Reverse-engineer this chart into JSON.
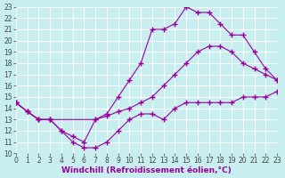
{
  "background_color": "#c8eef0",
  "grid_color": "#ffffff",
  "line_color": "#990099",
  "marker": "+",
  "markersize": 4,
  "linewidth": 0.8,
  "xlabel": "Windchill (Refroidissement éolien,°C)",
  "xlabel_fontsize": 6.5,
  "tick_fontsize": 5.5,
  "xlim": [
    0,
    23
  ],
  "ylim": [
    10,
    23
  ],
  "xticks": [
    0,
    1,
    2,
    3,
    4,
    5,
    6,
    7,
    8,
    9,
    10,
    11,
    12,
    13,
    14,
    15,
    16,
    17,
    18,
    19,
    20,
    21,
    22,
    23
  ],
  "yticks": [
    10,
    11,
    12,
    13,
    14,
    15,
    16,
    17,
    18,
    19,
    20,
    21,
    22,
    23
  ],
  "line1_x": [
    0,
    1,
    2,
    3,
    7,
    8,
    9,
    10,
    11,
    12,
    13,
    14,
    15,
    16,
    17,
    18,
    19,
    20,
    21,
    22,
    23
  ],
  "line1_y": [
    14.5,
    13.7,
    13.0,
    13.0,
    13.0,
    13.3,
    13.7,
    14.0,
    14.5,
    15.0,
    16.0,
    17.0,
    18.0,
    19.0,
    19.5,
    19.5,
    19.0,
    18.0,
    17.5,
    17.0,
    16.5
  ],
  "line2_x": [
    0,
    1,
    2,
    3,
    4,
    5,
    6,
    7,
    8,
    9,
    10,
    11,
    12,
    13,
    14,
    15,
    16,
    17,
    18,
    19,
    20,
    21,
    22,
    23
  ],
  "line2_y": [
    14.5,
    13.7,
    13.0,
    13.0,
    12.0,
    11.5,
    11.0,
    13.0,
    13.5,
    15.0,
    16.5,
    18.0,
    21.0,
    21.0,
    21.5,
    23.0,
    22.5,
    22.5,
    21.5,
    20.5,
    20.5,
    19.0,
    17.5,
    16.5
  ],
  "line3_x": [
    0,
    1,
    2,
    3,
    4,
    5,
    6,
    7,
    8,
    9,
    10,
    11,
    12,
    13,
    14,
    15,
    16,
    17,
    18,
    19,
    20,
    21,
    22,
    23
  ],
  "line3_y": [
    14.5,
    13.7,
    13.0,
    13.0,
    12.0,
    11.0,
    10.5,
    10.5,
    11.0,
    12.0,
    13.0,
    13.5,
    13.5,
    13.0,
    14.0,
    14.5,
    14.5,
    14.5,
    14.5,
    14.5,
    15.0,
    15.0,
    15.0,
    15.5
  ]
}
